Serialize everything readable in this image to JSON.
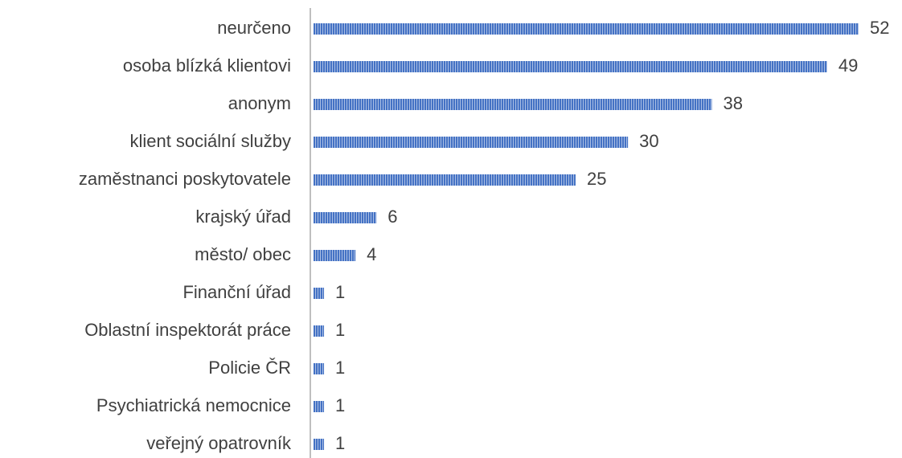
{
  "chart_data": {
    "type": "bar",
    "orientation": "horizontal",
    "categories": [
      "neurčeno",
      "osoba blízká klientovi",
      "anonym",
      "klient sociální služby",
      "zaměstnanci poskytovatele",
      "krajský úřad",
      "město/ obec",
      "Finanční úřad",
      "Oblastní inspektorát práce",
      "Policie ČR",
      "Psychiatrická nemocnice",
      "veřejný opatrovník"
    ],
    "values": [
      52,
      49,
      38,
      30,
      25,
      6,
      4,
      1,
      1,
      1,
      1,
      1
    ],
    "color": "#4472c4"
  }
}
